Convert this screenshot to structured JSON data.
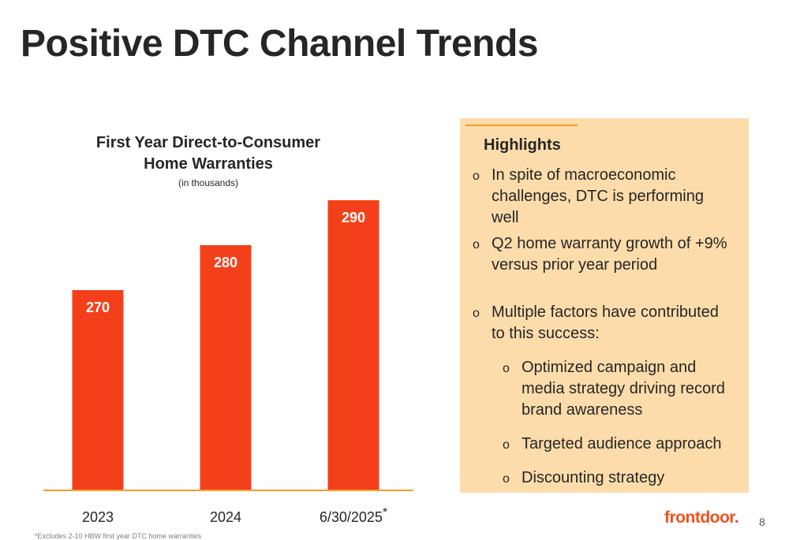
{
  "slide": {
    "title": "Positive DTC Channel Trends",
    "footnote": "*Excludes 2-10 HBW first year DTC home warranties",
    "page_number": "8",
    "logo_text": "frontdoor."
  },
  "chart_data": {
    "type": "bar",
    "title": "First Year Direct-to-Consumer Home Warranties",
    "subtitle": "(in thousands)",
    "categories": [
      "2023",
      "2024",
      "6/30/2025*"
    ],
    "values": [
      270,
      280,
      290
    ],
    "data_labels": [
      "270",
      "280",
      "290"
    ],
    "xlabel": "",
    "ylabel": "",
    "bar_color": "#f4401a",
    "axis_color": "#f39c2b",
    "grid": false
  },
  "highlights": {
    "title": "Highlights",
    "items": [
      {
        "text": "In spite of macroeconomic challenges, DTC is performing well"
      },
      {
        "text": "Q2 home warranty growth of +9% versus prior year period"
      },
      {
        "text": "Multiple factors have contributed to this success:"
      },
      {
        "text": "Optimized campaign and media strategy driving record brand awareness"
      },
      {
        "text": "Targeted audience approach"
      },
      {
        "text": "Discounting strategy"
      }
    ],
    "marker": "o"
  },
  "colors": {
    "panel_bg": "#fcdcaa",
    "accent": "#f39c2b",
    "brand": "#f4511e"
  }
}
